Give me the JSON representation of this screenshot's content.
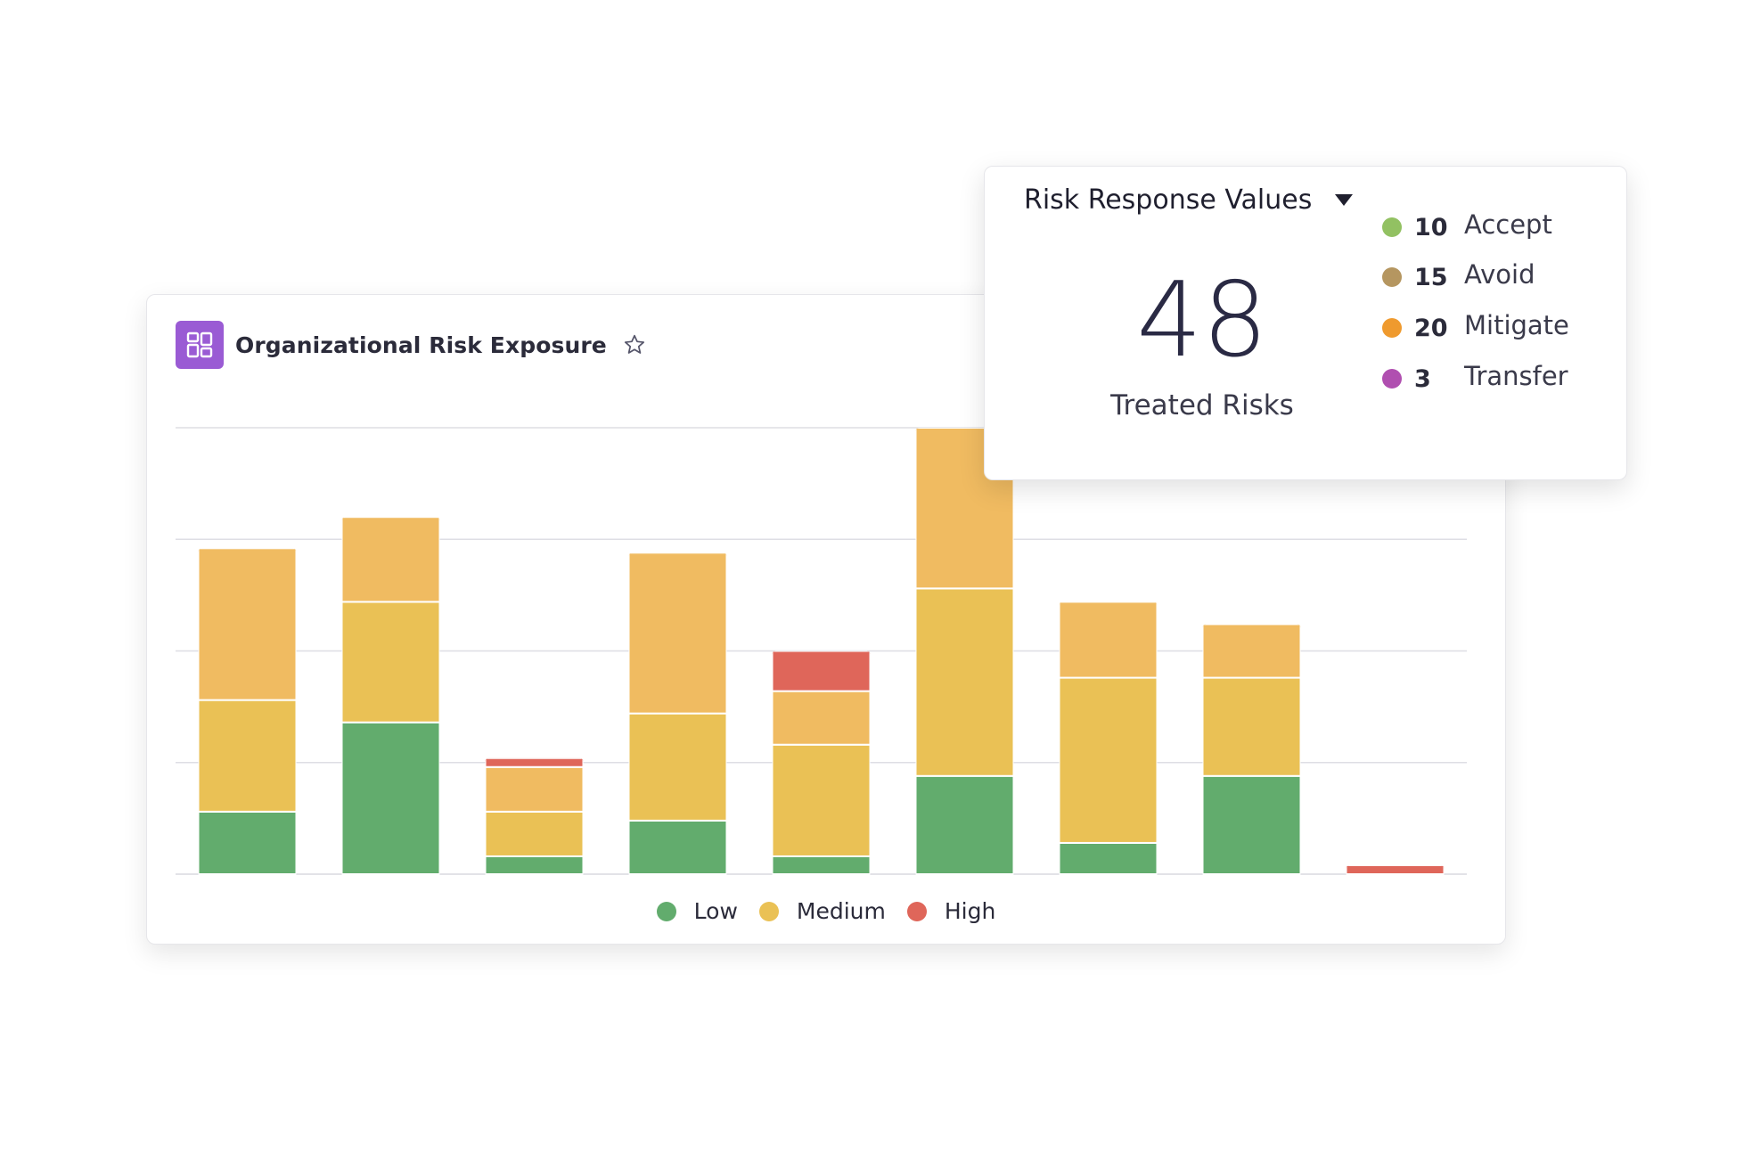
{
  "risk_exposure_card": {
    "title": "Organizational Risk Exposure",
    "icon": "dashboard-icon",
    "favorite_icon": "star-outline-icon",
    "icon_color": "#9a5bd4"
  },
  "chart_data": {
    "type": "bar",
    "stacked": true,
    "title": "Organizational Risk Exposure",
    "xlabel": "",
    "ylabel": "",
    "categories": [
      "",
      "",
      "",
      "",
      "",
      "",
      "",
      "",
      ""
    ],
    "ylim": [
      0,
      100
    ],
    "grid": true,
    "legend_position": "bottom",
    "series": [
      {
        "name": "Low",
        "color": "#62ac6d",
        "values": [
          14,
          34,
          4,
          12,
          4,
          22,
          7,
          22,
          0
        ]
      },
      {
        "name": "Medium",
        "color": "#eac155",
        "secondary_color": "#f0bb61",
        "values": [
          25,
          27,
          10,
          24,
          25,
          42,
          37,
          22,
          0
        ],
        "upper_values": [
          34,
          19,
          10,
          36,
          12,
          36,
          17,
          12,
          0
        ]
      },
      {
        "name": "High",
        "color": "#df665a",
        "values": [
          0,
          0,
          2,
          0,
          9,
          0,
          0,
          0,
          2
        ]
      }
    ]
  },
  "legend": [
    {
      "label": "Low",
      "color": "#62ac6d"
    },
    {
      "label": "Medium",
      "color": "#eac155"
    },
    {
      "label": "High",
      "color": "#df665a"
    }
  ],
  "risk_response": {
    "dropdown_label": "Risk Response Values",
    "total": "48",
    "total_caption": "Treated Risks",
    "items": [
      {
        "count": "10",
        "label": "Accept",
        "color": "#92c162"
      },
      {
        "count": "15",
        "label": "Avoid",
        "color": "#b59660"
      },
      {
        "count": "20",
        "label": "Mitigate",
        "color": "#ef9a2e"
      },
      {
        "count": "3",
        "label": "Transfer",
        "color": "#b04fb0"
      }
    ]
  }
}
